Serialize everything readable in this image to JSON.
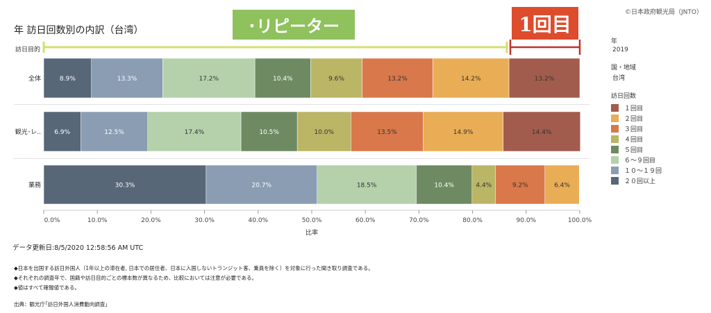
{
  "header": {
    "title": "年 訪日回数別の内訳（台湾）",
    "credit": "©日本政府観光局（JNTO）"
  },
  "annotations": {
    "repeater": "･リピーター",
    "first_time": "1回目"
  },
  "legend": {
    "year_label": "年",
    "year_value": "2019",
    "region_label": "国・地域",
    "region_value": "台湾",
    "visits_label": "訪日回数"
  },
  "footer": {
    "updated": "データ更新日:8/5/2020 12:58:56 AM UTC",
    "note1": "◆日本を出国する訪日外国人（1年以上の滞在者, 日本での居住者、日本に入国しないトランジット客、乗員を除く）を対象に行った聞き取り調査である。",
    "note2": "◆それぞれの調査年で、国籍や訪日目的ごとの標本数が異なるため、比較においては注意が必要である。",
    "note3": "◆値はすべて確報値である。",
    "source": "出典：観光庁｢訪日外国人消費動向調査｣"
  },
  "colors": {
    "repeater_bracket": "#d3df6f",
    "first_bracket": "#c0312a",
    "repeater_label_bg": "#8fc15c",
    "first_label_bg": "#dd4d2d"
  },
  "chart_data": {
    "type": "bar",
    "orientation": "horizontal-stacked",
    "row_header": "訪日目的",
    "categories": [
      "全体",
      "観光･レ..",
      "業務"
    ],
    "xlabel": "比率",
    "xlim": [
      0,
      100
    ],
    "x_ticks": [
      "0.0%",
      "10.0%",
      "20.0%",
      "30.0%",
      "40.0%",
      "50.0%",
      "60.0%",
      "70.0%",
      "80.0%",
      "90.0%",
      "100.0%"
    ],
    "stack_order": [
      "２０回以上",
      "１０～１９回",
      "６～９回目",
      "５回目",
      "４回目",
      "３回目",
      "２回目",
      "１回目"
    ],
    "series": [
      {
        "name": "１回目",
        "color": "#a15c4d",
        "values": [
          13.2,
          14.4,
          0
        ]
      },
      {
        "name": "２回目",
        "color": "#e9ad55",
        "values": [
          14.2,
          14.9,
          6.4
        ]
      },
      {
        "name": "３回目",
        "color": "#d9784a",
        "values": [
          13.2,
          13.5,
          9.2
        ]
      },
      {
        "name": "４回目",
        "color": "#bbb566",
        "values": [
          9.6,
          10.0,
          4.4
        ]
      },
      {
        "name": "５回目",
        "color": "#6e8a62",
        "values": [
          10.4,
          10.5,
          10.4
        ]
      },
      {
        "name": "６～９回目",
        "color": "#b4d1ac",
        "values": [
          17.2,
          17.4,
          18.5
        ]
      },
      {
        "name": "１０～１９回",
        "color": "#8a9db3",
        "values": [
          13.3,
          12.5,
          20.7
        ]
      },
      {
        "name": "２０回以上",
        "color": "#586778",
        "values": [
          8.9,
          6.9,
          30.3
        ]
      }
    ],
    "labels": [
      [
        "8.9%",
        "13.3%",
        "17.2%",
        "10.4%",
        "9.6%",
        "13.2%",
        "14.2%",
        "13.2%"
      ],
      [
        "6.9%",
        "12.5%",
        "17.4%",
        "10.5%",
        "10.0%",
        "13.5%",
        "14.9%",
        "14.4%"
      ],
      [
        "30.3%",
        "20.7%",
        "18.5%",
        "10.4%",
        "4.4%",
        "9.2%",
        "6.4%",
        ""
      ]
    ]
  }
}
